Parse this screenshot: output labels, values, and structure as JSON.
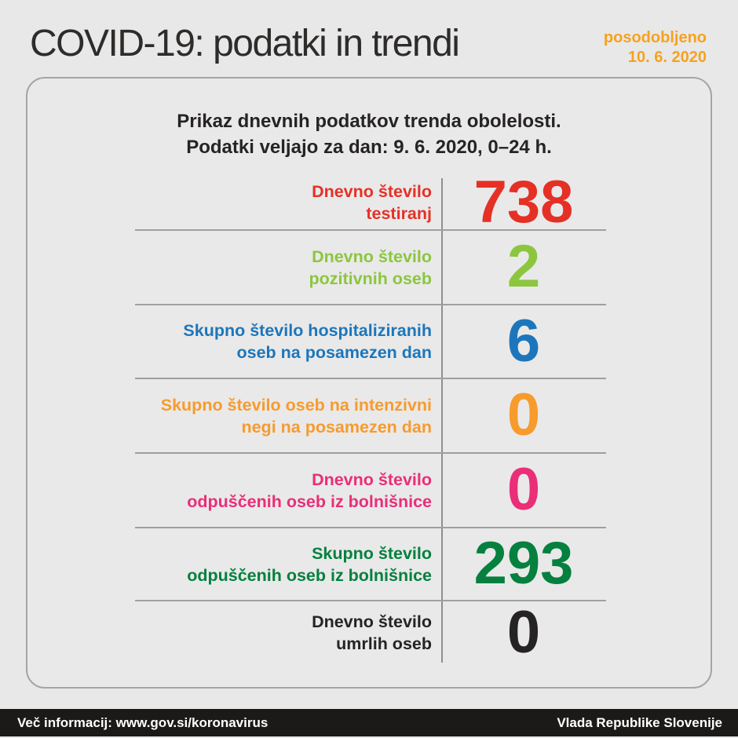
{
  "header": {
    "title": "COVID-19: podatki in trendi",
    "updated_label": "posodobljeno",
    "updated_date": "10. 6. 2020",
    "updated_color": "#f6a21f"
  },
  "card": {
    "intro_line1": "Prikaz dnevnih podatkov trenda obolelosti.",
    "intro_line2": "Podatki veljajo za dan: 9. 6. 2020, 0–24 h.",
    "rows": [
      {
        "label_line1": "Dnevno število",
        "label_line2": "testiranj",
        "value": "738",
        "color": "#e53026"
      },
      {
        "label_line1": "Dnevno število",
        "label_line2": "pozitivnih oseb",
        "value": "2",
        "color": "#8cc63f"
      },
      {
        "label_line1": "Skupno število hospitaliziranih",
        "label_line2": "oseb na posamezen dan",
        "value": "6",
        "color": "#1d76bb"
      },
      {
        "label_line1": "Skupno število oseb na intenzivni",
        "label_line2": "negi na posamezen dan",
        "value": "0",
        "color": "#f79b2d"
      },
      {
        "label_line1": "Dnevno število",
        "label_line2": "odpuščenih oseb iz bolnišnice",
        "value": "0",
        "color": "#ea2e77"
      },
      {
        "label_line1": "Skupno število",
        "label_line2": "odpuščenih oseb iz bolnišnice",
        "value": "293",
        "color": "#05803f"
      },
      {
        "label_line1": "Dnevno število",
        "label_line2": "umrlih oseb",
        "value": "0",
        "color": "#262324"
      }
    ]
  },
  "footer": {
    "left": "Več informacij: www.gov.si/koronavirus",
    "right": "Vlada Republike Slovenije"
  },
  "colors": {
    "background": "#e8e8e8",
    "card_border": "#a5a5a5",
    "divider": "#9f9f9f",
    "footer_bg": "#1b1a19",
    "title_text": "#2e2c2b"
  },
  "chart_data": {
    "type": "table",
    "title": "Prikaz dnevnih podatkov trenda obolelosti.",
    "subtitle": "Podatki veljajo za dan: 9. 6. 2020, 0–24 h.",
    "updated": "posodobljeno 10. 6. 2020",
    "categories": [
      "Dnevno število testiranj",
      "Dnevno število pozitivnih oseb",
      "Skupno število hospitaliziranih oseb na posamezen dan",
      "Skupno število oseb na intenzivni negi na posamezen dan",
      "Dnevno število odpuščenih oseb iz bolnišnice",
      "Skupno število odpuščenih oseb iz bolnišnice",
      "Dnevno število umrlih oseb"
    ],
    "values": [
      738,
      2,
      6,
      0,
      0,
      293,
      0
    ],
    "value_colors": [
      "#e53026",
      "#8cc63f",
      "#1d76bb",
      "#f79b2d",
      "#ea2e77",
      "#05803f",
      "#262324"
    ]
  }
}
